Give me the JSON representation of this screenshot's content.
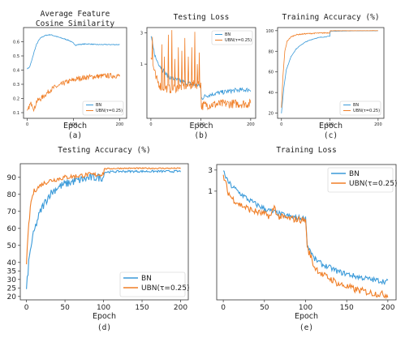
{
  "colors": {
    "bn": "#3a9ad9",
    "ubn": "#f07e26"
  },
  "chart_data": [
    {
      "id": "a",
      "type": "line",
      "title_lines": [
        "Average Feature",
        "Cosine Similarity"
      ],
      "xlabel": "Epoch",
      "sublabel": "(a)",
      "xlim": [
        -8,
        215
      ],
      "ylim": [
        0.06,
        0.7
      ],
      "xticks": [
        0,
        100,
        200
      ],
      "yticks": [
        0.1,
        0.2,
        0.3,
        0.4,
        0.5,
        0.6
      ],
      "ytick_labels": [
        "0.1",
        "0.2",
        "0.3",
        "0.4",
        "0.5",
        "0.6"
      ],
      "legend_position": "lower-right",
      "series": [
        {
          "name": "BN",
          "key": "bn",
          "points": [
            [
              0,
              0.41
            ],
            [
              5,
              0.42
            ],
            [
              10,
              0.47
            ],
            [
              15,
              0.53
            ],
            [
              20,
              0.58
            ],
            [
              25,
              0.61
            ],
            [
              30,
              0.63
            ],
            [
              40,
              0.645
            ],
            [
              50,
              0.65
            ],
            [
              60,
              0.64
            ],
            [
              70,
              0.63
            ],
            [
              80,
              0.62
            ],
            [
              90,
              0.61
            ],
            [
              100,
              0.59
            ],
            [
              105,
              0.575
            ],
            [
              110,
              0.58
            ],
            [
              130,
              0.585
            ],
            [
              150,
              0.58
            ],
            [
              170,
              0.58
            ],
            [
              200,
              0.58
            ]
          ],
          "noise": 0.003
        },
        {
          "name": "UBN(τ=0.25)",
          "key": "ubn",
          "points": [
            [
              0,
              0.1
            ],
            [
              5,
              0.15
            ],
            [
              10,
              0.17
            ],
            [
              15,
              0.12
            ],
            [
              20,
              0.18
            ],
            [
              30,
              0.2
            ],
            [
              40,
              0.23
            ],
            [
              50,
              0.26
            ],
            [
              60,
              0.28
            ],
            [
              70,
              0.29
            ],
            [
              80,
              0.31
            ],
            [
              90,
              0.32
            ],
            [
              100,
              0.33
            ],
            [
              110,
              0.34
            ],
            [
              130,
              0.35
            ],
            [
              150,
              0.355
            ],
            [
              170,
              0.36
            ],
            [
              200,
              0.36
            ]
          ],
          "noise": 0.018
        }
      ]
    },
    {
      "id": "b",
      "type": "line",
      "title_lines": [
        "Testing Loss"
      ],
      "xlabel": "Epoch",
      "sublabel": "(b)",
      "xlim": [
        -8,
        210
      ],
      "ylim": [
        0.15,
        3.6
      ],
      "yscale": "log",
      "xticks": [
        0,
        100,
        200
      ],
      "yticks": [
        1,
        3
      ],
      "ytick_labels": [
        "1",
        "3"
      ],
      "legend_position": "upper-right",
      "series": [
        {
          "name": "BN",
          "key": "bn",
          "points": [
            [
              0,
              2.6
            ],
            [
              5,
              1.7
            ],
            [
              10,
              1.2
            ],
            [
              20,
              0.9
            ],
            [
              30,
              0.7
            ],
            [
              40,
              0.62
            ],
            [
              50,
              0.58
            ],
            [
              60,
              0.55
            ],
            [
              70,
              0.52
            ],
            [
              80,
              0.5
            ],
            [
              90,
              0.48
            ],
            [
              100,
              0.47
            ],
            [
              101,
              0.3
            ],
            [
              110,
              0.33
            ],
            [
              130,
              0.36
            ],
            [
              150,
              0.38
            ],
            [
              170,
              0.4
            ],
            [
              200,
              0.41
            ]
          ],
          "noise": 0.04
        },
        {
          "name": "UBN(τ=0.25)",
          "key": "ubn",
          "points": [
            [
              0,
              1.3
            ],
            [
              5,
              0.9
            ],
            [
              10,
              0.6
            ],
            [
              20,
              0.45
            ],
            [
              40,
              0.42
            ],
            [
              60,
              0.45
            ],
            [
              80,
              0.48
            ],
            [
              100,
              0.5
            ],
            [
              101,
              0.23
            ],
            [
              110,
              0.24
            ],
            [
              150,
              0.25
            ],
            [
              200,
              0.25
            ]
          ],
          "noise": 0.08,
          "spikes": [
            [
              3,
              2.6
            ],
            [
              22,
              2.0
            ],
            [
              27,
              1.3
            ],
            [
              35,
              2.8
            ],
            [
              42,
              3.3
            ],
            [
              48,
              1.2
            ],
            [
              55,
              1.8
            ],
            [
              62,
              1.6
            ],
            [
              68,
              2.5
            ],
            [
              75,
              1.3
            ],
            [
              82,
              1.8
            ],
            [
              88,
              3.1
            ],
            [
              93,
              1.0
            ],
            [
              97,
              1.5
            ]
          ]
        }
      ]
    },
    {
      "id": "c",
      "type": "line",
      "title_lines": [
        "Training Accuracy (%)"
      ],
      "xlabel": "Epoch",
      "sublabel": "(c)",
      "xlim": [
        -8,
        212
      ],
      "ylim": [
        15,
        103
      ],
      "xticks": [
        0,
        100,
        200
      ],
      "yticks": [
        20,
        40,
        60,
        80,
        100
      ],
      "ytick_labels": [
        "20",
        "40",
        "60",
        "80",
        "100"
      ],
      "legend_position": "lower-right",
      "series": [
        {
          "name": "BN",
          "key": "bn",
          "points": [
            [
              0,
              20
            ],
            [
              5,
              45
            ],
            [
              10,
              62
            ],
            [
              20,
              75
            ],
            [
              30,
              82
            ],
            [
              40,
              86
            ],
            [
              50,
              89
            ],
            [
              60,
              91
            ],
            [
              70,
              92.5
            ],
            [
              80,
              93.5
            ],
            [
              90,
              94
            ],
            [
              100,
              94.5
            ],
            [
              101,
              99.5
            ],
            [
              150,
              99.8
            ],
            [
              200,
              99.9
            ]
          ],
          "noise": 0.3
        },
        {
          "name": "UBN(τ=0.25)",
          "key": "ubn",
          "points": [
            [
              0,
              25
            ],
            [
              3,
              55
            ],
            [
              7,
              80
            ],
            [
              12,
              90
            ],
            [
              20,
              94
            ],
            [
              30,
              96
            ],
            [
              50,
              97
            ],
            [
              70,
              97.5
            ],
            [
              100,
              98
            ],
            [
              101,
              99.9
            ],
            [
              200,
              100
            ]
          ],
          "noise": 0.5
        }
      ]
    },
    {
      "id": "d",
      "type": "line",
      "title_lines": [
        "Testing Accuracy (%)"
      ],
      "xlabel": "Epoch",
      "sublabel": "(d)",
      "xlim": [
        -8,
        210
      ],
      "ylim": [
        18,
        98
      ],
      "xticks": [
        0,
        50,
        100,
        150,
        200
      ],
      "yticks": [
        20,
        25,
        30,
        35,
        40,
        50,
        60,
        70,
        80,
        90
      ],
      "ytick_labels": [
        "20",
        "25",
        "30",
        "35",
        "40",
        "50",
        "60",
        "70",
        "80",
        "90"
      ],
      "legend_position": "lower-right",
      "series": [
        {
          "name": "BN",
          "key": "bn",
          "points": [
            [
              0,
              24
            ],
            [
              3,
              40
            ],
            [
              6,
              50
            ],
            [
              10,
              58
            ],
            [
              15,
              66
            ],
            [
              20,
              72
            ],
            [
              25,
              76
            ],
            [
              30,
              80
            ],
            [
              40,
              84
            ],
            [
              50,
              86
            ],
            [
              60,
              87.5
            ],
            [
              70,
              88.5
            ],
            [
              80,
              89.5
            ],
            [
              90,
              90
            ],
            [
              100,
              90
            ],
            [
              101,
              93
            ],
            [
              120,
              93.5
            ],
            [
              150,
              93.5
            ],
            [
              200,
              93.5
            ]
          ],
          "noise": 2.5
        },
        {
          "name": "UBN(τ=0.25)",
          "key": "ubn",
          "points": [
            [
              0,
              40
            ],
            [
              3,
              62
            ],
            [
              6,
              76
            ],
            [
              10,
              82
            ],
            [
              15,
              84
            ],
            [
              20,
              86
            ],
            [
              30,
              88
            ],
            [
              40,
              89
            ],
            [
              50,
              90
            ],
            [
              60,
              90.5
            ],
            [
              70,
              91
            ],
            [
              80,
              91.5
            ],
            [
              90,
              91.5
            ],
            [
              100,
              92
            ],
            [
              101,
              95
            ],
            [
              120,
              95.3
            ],
            [
              150,
              95.3
            ],
            [
              200,
              95.3
            ]
          ],
          "noise": 1.4
        }
      ]
    },
    {
      "id": "e",
      "type": "line",
      "title_lines": [
        "Training Loss"
      ],
      "xlabel": "Epoch",
      "sublabel": "(e)",
      "xlim": [
        -8,
        210
      ],
      "ylim": [
        0.0035,
        4.0
      ],
      "yscale": "log",
      "xticks": [
        0,
        50,
        100,
        150,
        200
      ],
      "yticks": [
        1,
        3
      ],
      "ytick_labels": [
        "1",
        "3"
      ],
      "legend_position": "upper-right",
      "series": [
        {
          "name": "BN",
          "key": "bn",
          "points": [
            [
              0,
              2.8
            ],
            [
              5,
              1.7
            ],
            [
              10,
              1.3
            ],
            [
              20,
              0.9
            ],
            [
              30,
              0.65
            ],
            [
              40,
              0.5
            ],
            [
              50,
              0.4
            ],
            [
              60,
              0.34
            ],
            [
              70,
              0.3
            ],
            [
              80,
              0.27
            ],
            [
              90,
              0.25
            ],
            [
              100,
              0.24
            ],
            [
              102,
              0.06
            ],
            [
              110,
              0.03
            ],
            [
              120,
              0.022
            ],
            [
              140,
              0.015
            ],
            [
              160,
              0.012
            ],
            [
              180,
              0.01
            ],
            [
              200,
              0.009
            ]
          ],
          "noise": 0.07
        },
        {
          "name": "UBN(τ=0.25)",
          "key": "ubn",
          "points": [
            [
              0,
              2.2
            ],
            [
              5,
              1.0
            ],
            [
              10,
              0.7
            ],
            [
              20,
              0.5
            ],
            [
              30,
              0.4
            ],
            [
              40,
              0.34
            ],
            [
              50,
              0.3
            ],
            [
              58,
              0.27
            ],
            [
              62,
              0.45
            ],
            [
              66,
              0.27
            ],
            [
              70,
              0.26
            ],
            [
              80,
              0.24
            ],
            [
              90,
              0.23
            ],
            [
              100,
              0.22
            ],
            [
              102,
              0.05
            ],
            [
              110,
              0.02
            ],
            [
              120,
              0.013
            ],
            [
              140,
              0.008
            ],
            [
              160,
              0.006
            ],
            [
              180,
              0.005
            ],
            [
              200,
              0.0045
            ]
          ],
          "noise": 0.09
        }
      ]
    }
  ]
}
